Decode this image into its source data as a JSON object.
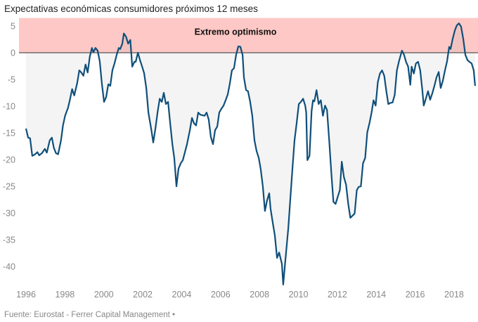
{
  "chart_data": {
    "type": "line",
    "title": "Expectativas económicas consumidores próximos 12 meses",
    "xlabel": "",
    "ylabel": "",
    "xlim": [
      1996,
      2018.9
    ],
    "ylim": [
      -44,
      6.5
    ],
    "yticks": [
      5,
      0,
      -5,
      -10,
      -15,
      -20,
      -25,
      -30,
      -35,
      -40
    ],
    "xticks": [
      1996,
      1998,
      2000,
      2002,
      2004,
      2006,
      2008,
      2010,
      2012,
      2014,
      2016,
      2018
    ],
    "grid": false,
    "legend": "none",
    "band": {
      "label": "Extremo optimismo",
      "from": 0,
      "to": 6.5,
      "color": "#fdc8c5"
    },
    "colors": {
      "line": "#0f4f7a",
      "band": "#fdc8c5",
      "fill_below": "#f4f4f4",
      "fill_above": "#f1c3c0",
      "zero_line": "#555555"
    },
    "series": [
      {
        "name": "Expectativas económicas",
        "points": [
          [
            1996.0,
            -14.2
          ],
          [
            1996.11,
            -15.9
          ],
          [
            1996.21,
            -16.0
          ],
          [
            1996.32,
            -19.3
          ],
          [
            1996.47,
            -19.0
          ],
          [
            1996.58,
            -18.6
          ],
          [
            1996.68,
            -19.2
          ],
          [
            1996.82,
            -18.8
          ],
          [
            1996.97,
            -18.0
          ],
          [
            1997.07,
            -18.7
          ],
          [
            1997.22,
            -16.4
          ],
          [
            1997.33,
            -15.9
          ],
          [
            1997.43,
            -17.8
          ],
          [
            1997.54,
            -18.8
          ],
          [
            1997.65,
            -19.0
          ],
          [
            1997.8,
            -16.4
          ],
          [
            1997.9,
            -13.6
          ],
          [
            1998.01,
            -11.8
          ],
          [
            1998.16,
            -10.3
          ],
          [
            1998.27,
            -8.6
          ],
          [
            1998.37,
            -6.8
          ],
          [
            1998.48,
            -8.0
          ],
          [
            1998.63,
            -5.7
          ],
          [
            1998.74,
            -3.3
          ],
          [
            1998.84,
            -3.7
          ],
          [
            1998.95,
            -4.3
          ],
          [
            1999.06,
            -2.2
          ],
          [
            1999.17,
            -3.7
          ],
          [
            1999.28,
            -0.7
          ],
          [
            1999.39,
            0.9
          ],
          [
            1999.47,
            0.1
          ],
          [
            1999.57,
            0.9
          ],
          [
            1999.68,
            0.4
          ],
          [
            1999.79,
            -1.6
          ],
          [
            1999.9,
            -5.9
          ],
          [
            2000.01,
            -9.2
          ],
          [
            2000.12,
            -8.3
          ],
          [
            2000.23,
            -5.9
          ],
          [
            2000.33,
            -6.2
          ],
          [
            2000.44,
            -3.3
          ],
          [
            2000.55,
            -2.0
          ],
          [
            2000.66,
            -0.4
          ],
          [
            2000.77,
            0.9
          ],
          [
            2000.84,
            0.7
          ],
          [
            2000.95,
            1.7
          ],
          [
            2001.03,
            3.6
          ],
          [
            2001.14,
            3.0
          ],
          [
            2001.25,
            1.7
          ],
          [
            2001.36,
            2.4
          ],
          [
            2001.46,
            -2.6
          ],
          [
            2001.57,
            -1.7
          ],
          [
            2001.64,
            -1.7
          ],
          [
            2001.75,
            0.0
          ],
          [
            2001.86,
            -1.4
          ],
          [
            2001.97,
            -2.6
          ],
          [
            2002.07,
            -3.8
          ],
          [
            2002.18,
            -6.6
          ],
          [
            2002.29,
            -11.2
          ],
          [
            2002.43,
            -14.2
          ],
          [
            2002.54,
            -16.8
          ],
          [
            2002.65,
            -14.2
          ],
          [
            2002.76,
            -11.2
          ],
          [
            2002.87,
            -8.6
          ],
          [
            2002.98,
            -9.2
          ],
          [
            2003.08,
            -7.5
          ],
          [
            2003.19,
            -9.6
          ],
          [
            2003.3,
            -9.2
          ],
          [
            2003.41,
            -13.2
          ],
          [
            2003.52,
            -17.1
          ],
          [
            2003.62,
            -19.7
          ],
          [
            2003.73,
            -25.0
          ],
          [
            2003.84,
            -21.7
          ],
          [
            2003.95,
            -20.7
          ],
          [
            2004.06,
            -20.1
          ],
          [
            2004.17,
            -18.6
          ],
          [
            2004.27,
            -17.2
          ],
          [
            2004.42,
            -14.5
          ],
          [
            2004.53,
            -12.2
          ],
          [
            2004.63,
            -13.2
          ],
          [
            2004.74,
            -13.6
          ],
          [
            2004.85,
            -11.2
          ],
          [
            2004.96,
            -11.6
          ],
          [
            2005.07,
            -11.7
          ],
          [
            2005.18,
            -11.8
          ],
          [
            2005.28,
            -11.2
          ],
          [
            2005.39,
            -12.5
          ],
          [
            2005.5,
            -15.8
          ],
          [
            2005.61,
            -17.1
          ],
          [
            2005.72,
            -14.5
          ],
          [
            2005.83,
            -13.8
          ],
          [
            2005.93,
            -11.2
          ],
          [
            2006.04,
            -10.5
          ],
          [
            2006.15,
            -9.9
          ],
          [
            2006.26,
            -8.9
          ],
          [
            2006.37,
            -7.8
          ],
          [
            2006.47,
            -5.9
          ],
          [
            2006.58,
            -3.3
          ],
          [
            2006.69,
            -2.9
          ],
          [
            2006.8,
            -0.4
          ],
          [
            2006.91,
            1.2
          ],
          [
            2007.02,
            1.1
          ],
          [
            2007.13,
            -0.4
          ],
          [
            2007.2,
            -4.6
          ],
          [
            2007.31,
            -7.0
          ],
          [
            2007.41,
            -7.2
          ],
          [
            2007.52,
            -9.2
          ],
          [
            2007.63,
            -11.8
          ],
          [
            2007.74,
            -16.4
          ],
          [
            2007.85,
            -18.4
          ],
          [
            2007.96,
            -19.7
          ],
          [
            2008.06,
            -21.7
          ],
          [
            2008.17,
            -25.0
          ],
          [
            2008.28,
            -29.6
          ],
          [
            2008.39,
            -27.6
          ],
          [
            2008.5,
            -26.3
          ],
          [
            2008.57,
            -29.2
          ],
          [
            2008.64,
            -30.9
          ],
          [
            2008.79,
            -34.2
          ],
          [
            2008.9,
            -38.4
          ],
          [
            2009.01,
            -37.4
          ],
          [
            2009.15,
            -39.5
          ],
          [
            2009.22,
            -43.4
          ],
          [
            2009.33,
            -38.8
          ],
          [
            2009.48,
            -32.9
          ],
          [
            2009.59,
            -27.0
          ],
          [
            2009.7,
            -21.4
          ],
          [
            2009.8,
            -16.4
          ],
          [
            2009.91,
            -13.2
          ],
          [
            2010.02,
            -9.6
          ],
          [
            2010.13,
            -9.2
          ],
          [
            2010.24,
            -8.6
          ],
          [
            2010.35,
            -9.9
          ],
          [
            2010.4,
            -11.2
          ],
          [
            2010.46,
            -20.1
          ],
          [
            2010.57,
            -19.3
          ],
          [
            2010.68,
            -10.9
          ],
          [
            2010.75,
            -8.9
          ],
          [
            2010.82,
            -9.1
          ],
          [
            2010.93,
            -7.0
          ],
          [
            2011.04,
            -9.6
          ],
          [
            2011.15,
            -8.9
          ],
          [
            2011.26,
            -11.8
          ],
          [
            2011.37,
            -9.9
          ],
          [
            2011.47,
            -10.7
          ],
          [
            2011.58,
            -16.4
          ],
          [
            2011.69,
            -22.4
          ],
          [
            2011.8,
            -27.9
          ],
          [
            2011.91,
            -28.3
          ],
          [
            2012.02,
            -27.0
          ],
          [
            2012.13,
            -25.7
          ],
          [
            2012.23,
            -20.4
          ],
          [
            2012.34,
            -23.3
          ],
          [
            2012.45,
            -24.7
          ],
          [
            2012.56,
            -28.3
          ],
          [
            2012.67,
            -30.9
          ],
          [
            2012.78,
            -30.5
          ],
          [
            2012.89,
            -30.1
          ],
          [
            2013.0,
            -25.7
          ],
          [
            2013.1,
            -25.1
          ],
          [
            2013.21,
            -25.0
          ],
          [
            2013.32,
            -20.7
          ],
          [
            2013.43,
            -19.7
          ],
          [
            2013.54,
            -14.9
          ],
          [
            2013.65,
            -13.2
          ],
          [
            2013.76,
            -11.2
          ],
          [
            2013.86,
            -8.9
          ],
          [
            2013.97,
            -9.9
          ],
          [
            2014.08,
            -5.5
          ],
          [
            2014.19,
            -3.9
          ],
          [
            2014.3,
            -3.3
          ],
          [
            2014.41,
            -4.3
          ],
          [
            2014.52,
            -7.2
          ],
          [
            2014.62,
            -9.6
          ],
          [
            2014.73,
            -9.4
          ],
          [
            2014.84,
            -9.3
          ],
          [
            2014.95,
            -7.9
          ],
          [
            2015.06,
            -3.3
          ],
          [
            2015.17,
            -1.6
          ],
          [
            2015.32,
            0.4
          ],
          [
            2015.43,
            -0.4
          ],
          [
            2015.53,
            -1.7
          ],
          [
            2015.64,
            -2.6
          ],
          [
            2015.75,
            -6.0
          ],
          [
            2015.82,
            -2.6
          ],
          [
            2015.93,
            -3.9
          ],
          [
            2016.04,
            -2.0
          ],
          [
            2016.15,
            -1.7
          ],
          [
            2016.26,
            -3.3
          ],
          [
            2016.37,
            -7.0
          ],
          [
            2016.44,
            -9.9
          ],
          [
            2016.55,
            -8.6
          ],
          [
            2016.66,
            -7.2
          ],
          [
            2016.77,
            -8.8
          ],
          [
            2016.88,
            -7.6
          ],
          [
            2016.99,
            -6.2
          ],
          [
            2017.1,
            -4.6
          ],
          [
            2017.21,
            -3.6
          ],
          [
            2017.31,
            -6.6
          ],
          [
            2017.42,
            -5.3
          ],
          [
            2017.53,
            -3.3
          ],
          [
            2017.64,
            -1.6
          ],
          [
            2017.75,
            1.1
          ],
          [
            2017.82,
            0.7
          ],
          [
            2017.93,
            2.6
          ],
          [
            2018.04,
            4.2
          ],
          [
            2018.14,
            5.1
          ],
          [
            2018.25,
            5.5
          ],
          [
            2018.36,
            4.9
          ],
          [
            2018.47,
            2.6
          ],
          [
            2018.58,
            -0.4
          ],
          [
            2018.69,
            -1.4
          ],
          [
            2018.79,
            -1.7
          ],
          [
            2018.9,
            -2.0
          ],
          [
            2019.01,
            -3.3
          ],
          [
            2019.08,
            -6.2
          ]
        ]
      }
    ]
  },
  "source": "Fuente: Eurostat - Ferrer Capital Management •"
}
